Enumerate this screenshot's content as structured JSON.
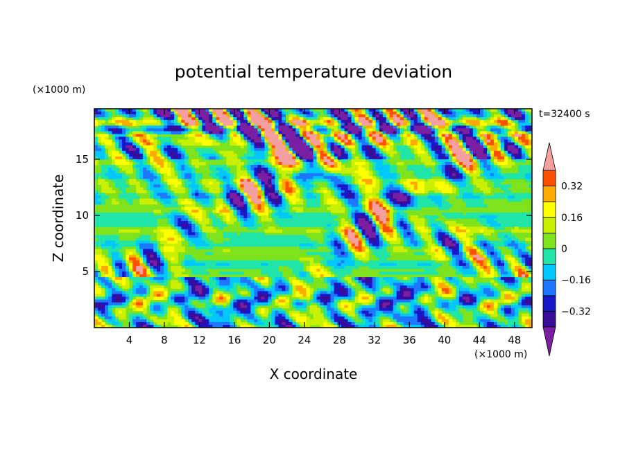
{
  "chart_data": {
    "type": "heatmap",
    "title": "potential temperature deviation",
    "xlabel": "X coordinate",
    "ylabel": "Z coordinate",
    "x_unit": "(×1000 m)",
    "y_unit": "(×1000 m)",
    "time_label": "t=32400 s",
    "xlim": [
      0,
      50
    ],
    "ylim": [
      0,
      19.5
    ],
    "x_ticks": [
      4,
      8,
      12,
      16,
      20,
      24,
      28,
      32,
      36,
      40,
      44,
      48
    ],
    "y_ticks": [
      5,
      10,
      15
    ],
    "colorbar": {
      "levels": [
        -0.4,
        -0.32,
        -0.24,
        -0.16,
        -0.08,
        0,
        0.08,
        0.16,
        0.24,
        0.32,
        0.4
      ],
      "labels": [
        "0.32",
        "0.16",
        "0",
        "−0.16",
        "−0.32"
      ],
      "label_values": [
        0.32,
        0.16,
        0,
        -0.16,
        -0.32
      ],
      "colors": [
        "#7a1fa2",
        "#3a0d96",
        "#1818c8",
        "#1e78ff",
        "#00c8ff",
        "#20e4a8",
        "#7ee21c",
        "#c8f000",
        "#ffff00",
        "#ffaa00",
        "#ff5000",
        "#f5a0a0"
      ],
      "extend": "both"
    }
  }
}
